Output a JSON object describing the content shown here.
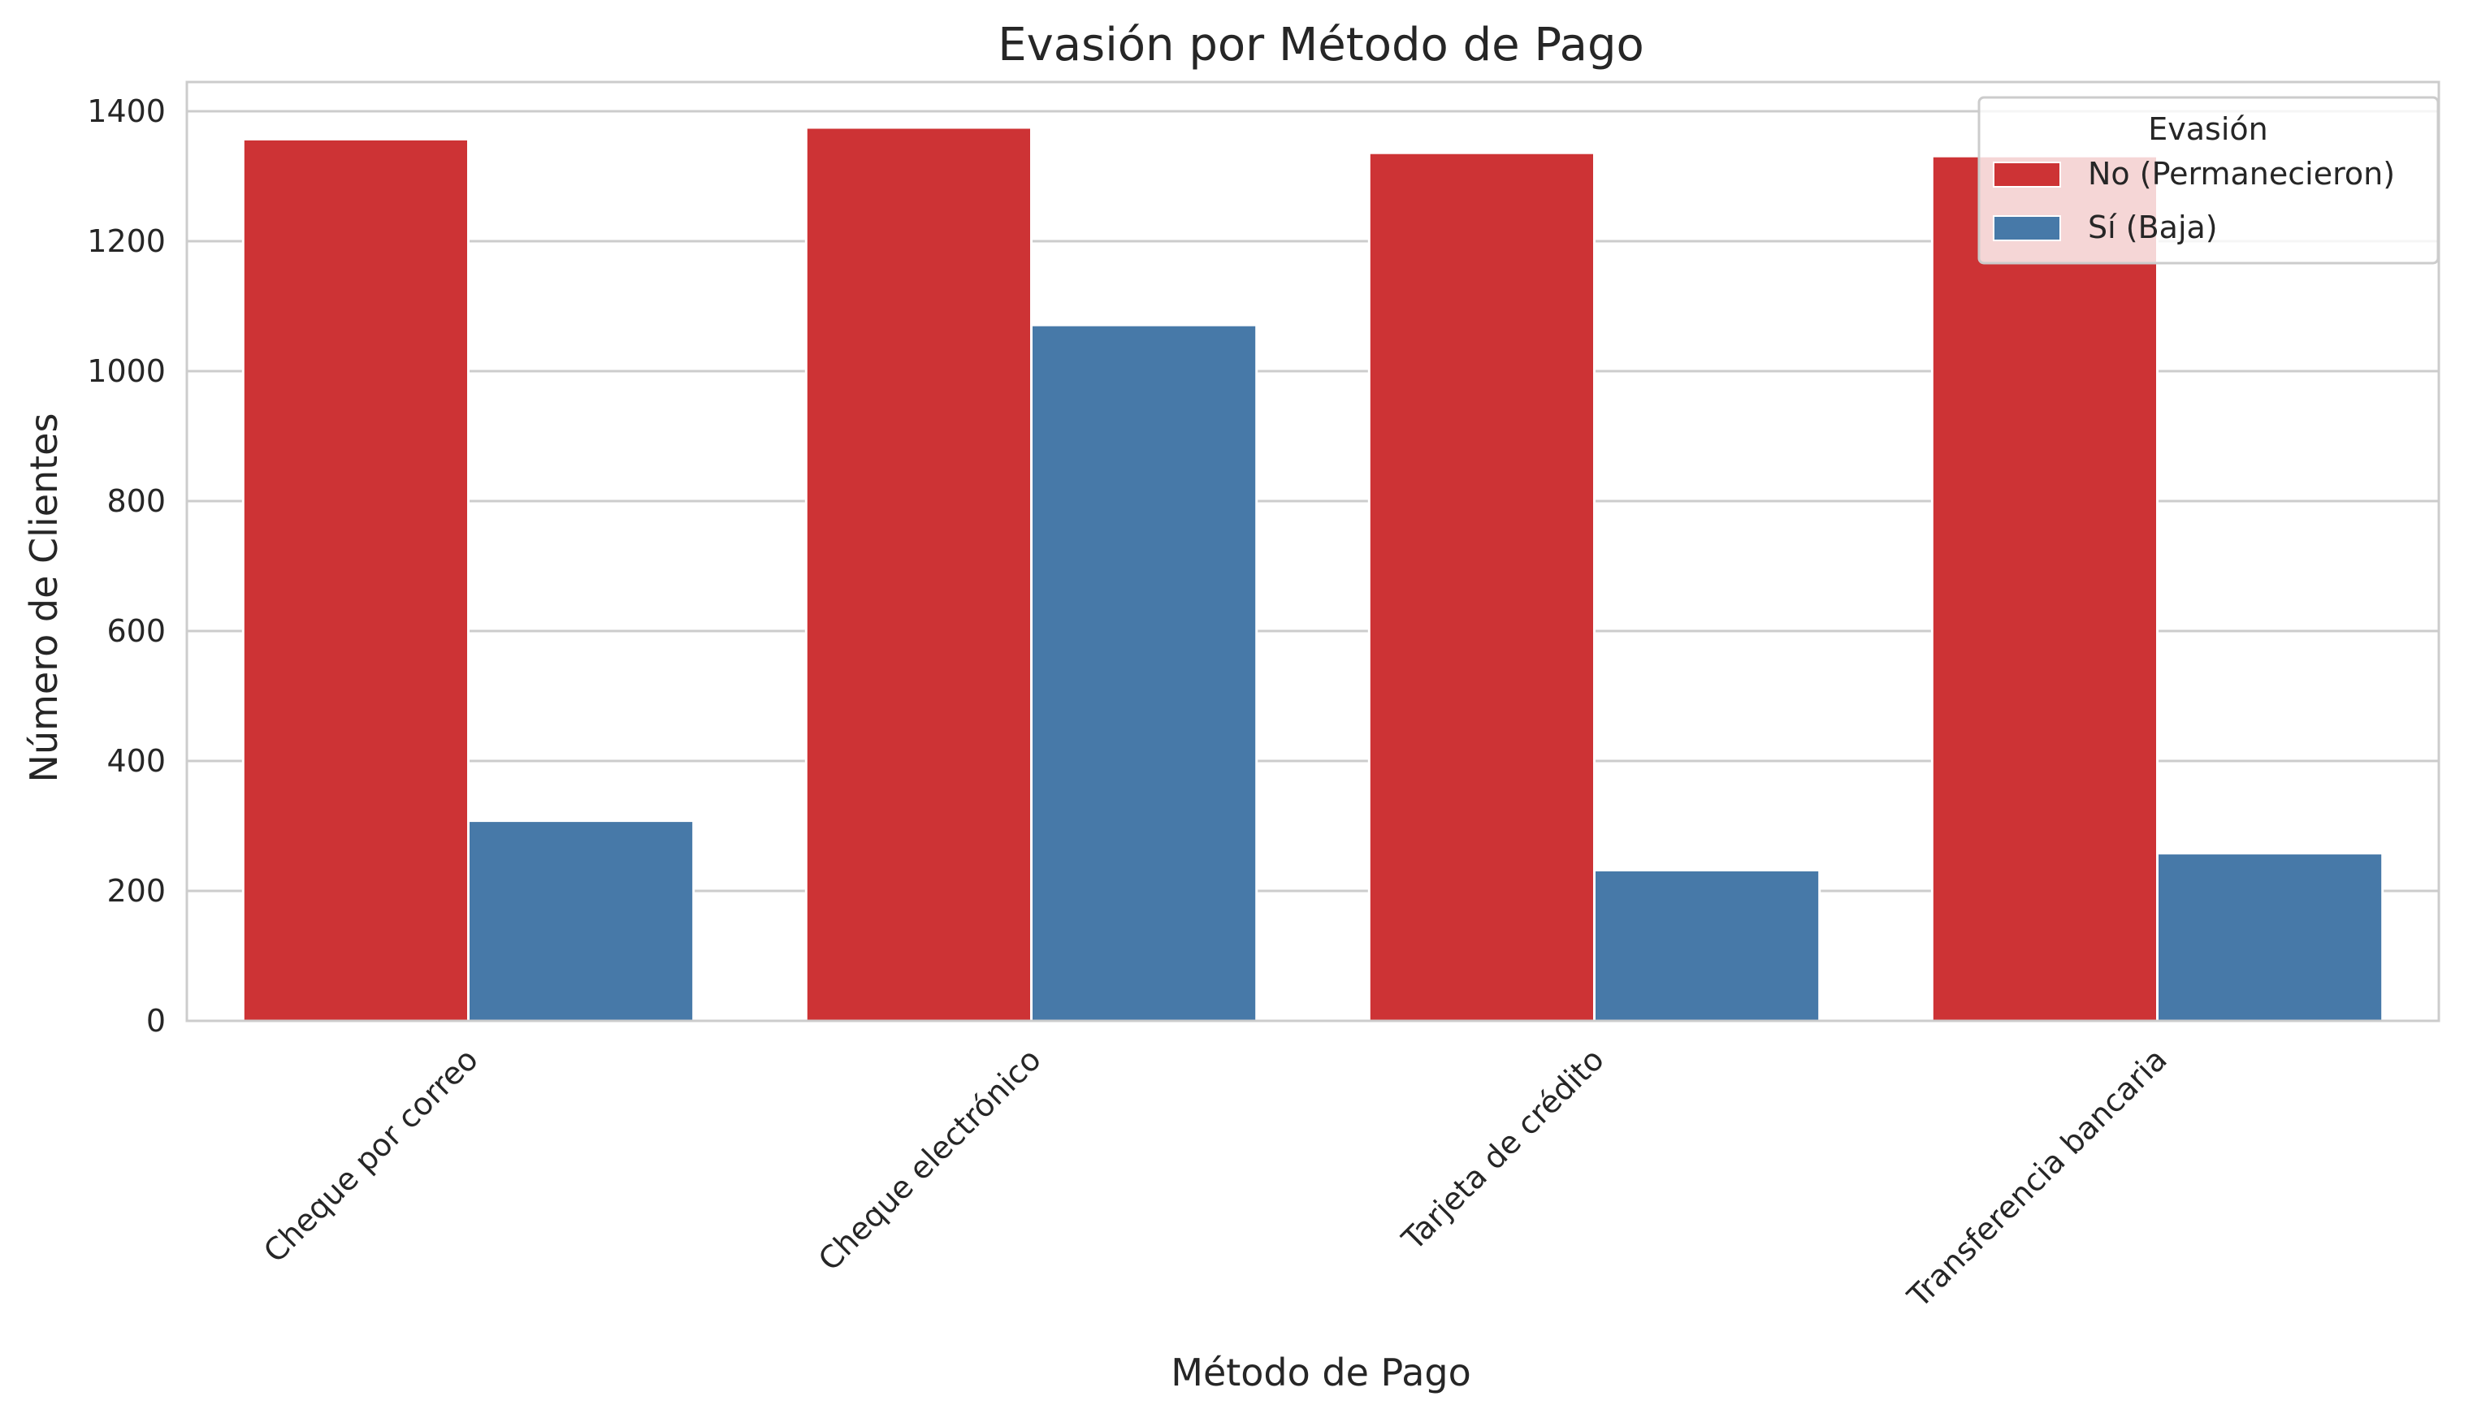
{
  "chart_data": {
    "type": "bar",
    "title": "Evasión por Método de Pago",
    "xlabel": "Método de Pago",
    "ylabel": "Número de Clientes",
    "categories": [
      "Cheque por correo",
      "Cheque electrónico",
      "Tarjeta de crédito",
      "Transferencia bancaria"
    ],
    "series": [
      {
        "name": "No (Permanecieron)",
        "color": "#cd3335",
        "values": [
          1357,
          1375,
          1336,
          1331
        ]
      },
      {
        "name": "Sí (Baja)",
        "color": "#4779a8",
        "values": [
          308,
          1071,
          232,
          258
        ]
      }
    ],
    "ylim": [
      0,
      1445
    ],
    "yticks": [
      0,
      200,
      400,
      600,
      800,
      1000,
      1200,
      1400
    ],
    "grid": true,
    "legend": {
      "title": "Evasión",
      "position": "top-right"
    }
  }
}
